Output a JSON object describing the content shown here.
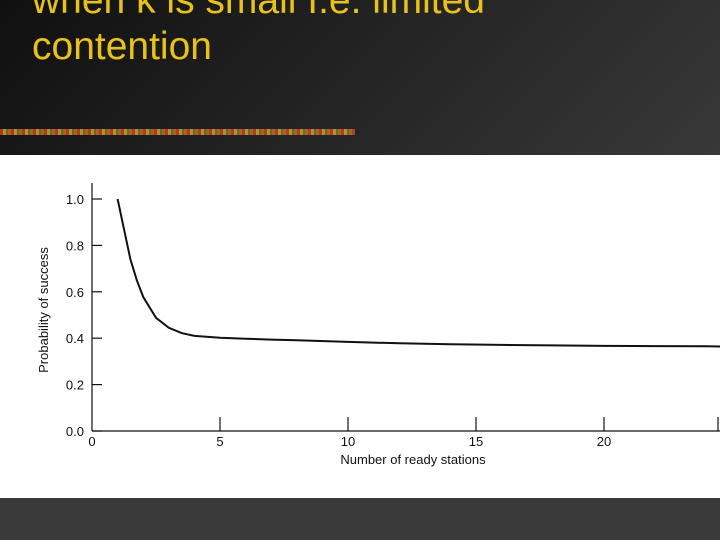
{
  "slide": {
    "title_lines": [
      "when k is small I.e. limited",
      "contention"
    ]
  },
  "chart_data": {
    "type": "line",
    "title": "",
    "xlabel": "Number of ready stations",
    "ylabel": "Probability of success",
    "xlim": [
      0,
      25
    ],
    "ylim": [
      0,
      1.0
    ],
    "xticks": [
      0,
      5,
      10,
      15,
      20
    ],
    "yticks": [
      0.0,
      0.2,
      0.4,
      0.6,
      0.8,
      1.0
    ],
    "x_tick_labels": [
      "0",
      "5",
      "10",
      "15",
      "20"
    ],
    "y_tick_labels": [
      "0.0",
      "0.2",
      "0.4",
      "0.6",
      "0.8",
      "1.0"
    ],
    "grid": false,
    "series": [
      {
        "x": [
          1,
          1.25,
          1.5,
          1.75,
          2,
          2.5,
          3,
          3.5,
          4,
          5,
          6,
          7,
          8,
          10,
          12,
          14,
          16,
          18,
          20,
          22,
          24,
          25
        ],
        "values": [
          1.0,
          0.87,
          0.74,
          0.65,
          0.578,
          0.488,
          0.445,
          0.422,
          0.41,
          0.402,
          0.398,
          0.394,
          0.391,
          0.384,
          0.378,
          0.374,
          0.371,
          0.369,
          0.367,
          0.366,
          0.365,
          0.364
        ]
      }
    ]
  }
}
